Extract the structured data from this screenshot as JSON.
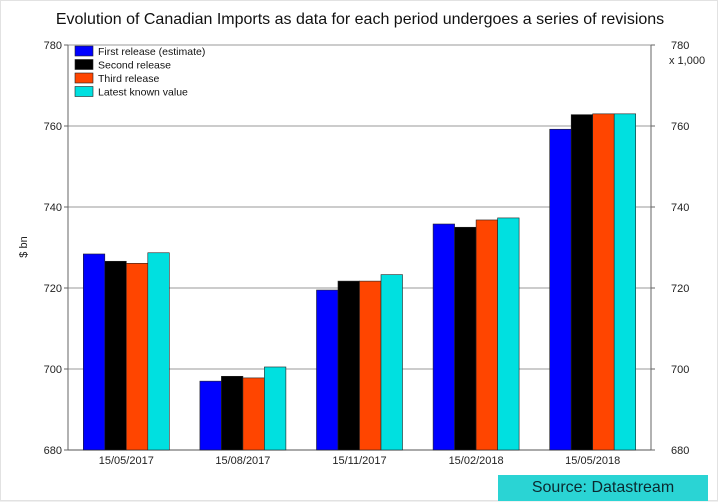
{
  "chart_data": {
    "type": "bar",
    "title": "Evolution of Canadian Imports as data for each period undergoes a series of revisions",
    "ylabel": "$ bn",
    "y2_unit": "x 1,000",
    "ylim": [
      680,
      780
    ],
    "yticks": [
      680,
      700,
      720,
      740,
      760,
      780
    ],
    "grid": true,
    "legend_position": "top-left",
    "categories": [
      "15/05/2017",
      "15/08/2017",
      "15/11/2017",
      "15/02/2018",
      "15/05/2018"
    ],
    "series": [
      {
        "name": "First release (estimate)",
        "color": "#0000ff",
        "values": [
          728.4,
          697.0,
          719.5,
          735.8,
          759.2
        ]
      },
      {
        "name": "Second release",
        "color": "#000000",
        "values": [
          726.6,
          698.2,
          721.7,
          735.0,
          762.8
        ]
      },
      {
        "name": "Third release",
        "color": "#ff4500",
        "values": [
          726.1,
          697.8,
          721.7,
          736.8,
          763.0
        ]
      },
      {
        "name": "Latest known value",
        "color": "#00e0e0",
        "values": [
          728.7,
          700.5,
          723.3,
          737.3,
          763.0
        ]
      }
    ]
  },
  "footer": {
    "source": "Source: Datastream"
  }
}
